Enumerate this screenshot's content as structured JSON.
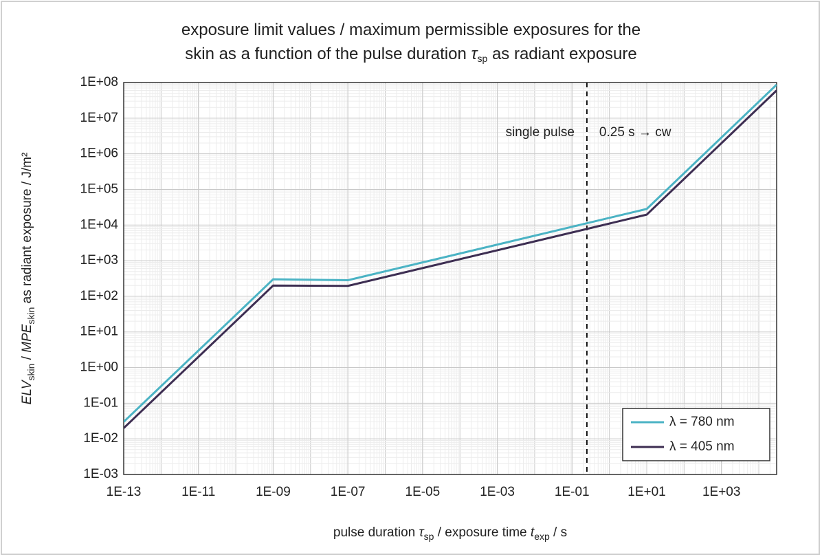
{
  "chart_data": {
    "type": "line",
    "title": [
      [
        "exposure limit values / maximum permissible exposures for the"
      ],
      [
        "skin as a function of the pulse duration ",
        "τ",
        "sp",
        " as radiant exposure"
      ]
    ],
    "xlabel": [
      "pulse duration ",
      "τ",
      "sp",
      " / exposure time ",
      "t",
      "exp",
      " / s"
    ],
    "ylabel": [
      "ELV",
      "skin",
      " / ",
      "MPE",
      "skin",
      " as radiant exposure / J/m²"
    ],
    "x": [
      1e-13,
      1e-09,
      1e-07,
      10,
      30000
    ],
    "series": [
      {
        "name": "λ = 780 nm",
        "color": "#4bb3c4",
        "values": [
          0.03,
          300,
          283,
          28300,
          87000000
        ]
      },
      {
        "name": "λ = 405 nm",
        "color": "#3d2e52",
        "values": [
          0.02,
          200,
          196,
          19600,
          60000000
        ]
      }
    ],
    "xlim": [
      1e-13,
      30000
    ],
    "ylim": [
      0.001,
      100000000
    ],
    "xscale": "log",
    "yscale": "log",
    "grid": true,
    "legend": "lower right",
    "xticks": [
      {
        "value": 1e-13,
        "label": "1E-13"
      },
      {
        "value": 1e-11,
        "label": "1E-11"
      },
      {
        "value": 1e-09,
        "label": "1E-09"
      },
      {
        "value": 1e-07,
        "label": "1E-07"
      },
      {
        "value": 1e-05,
        "label": "1E-05"
      },
      {
        "value": 0.001,
        "label": "1E-03"
      },
      {
        "value": 0.1,
        "label": "1E-01"
      },
      {
        "value": 10,
        "label": "1E+01"
      },
      {
        "value": 1000,
        "label": "1E+03"
      }
    ],
    "yticks": [
      {
        "value": 0.001,
        "label": "1E-03"
      },
      {
        "value": 0.01,
        "label": "1E-02"
      },
      {
        "value": 0.1,
        "label": "1E-01"
      },
      {
        "value": 1,
        "label": "1E+00"
      },
      {
        "value": 10,
        "label": "1E+01"
      },
      {
        "value": 100,
        "label": "1E+02"
      },
      {
        "value": 1000,
        "label": "1E+03"
      },
      {
        "value": 10000,
        "label": "1E+04"
      },
      {
        "value": 100000,
        "label": "1E+05"
      },
      {
        "value": 1000000,
        "label": "1E+06"
      },
      {
        "value": 10000000,
        "label": "1E+07"
      },
      {
        "value": 100000000,
        "label": "1E+08"
      }
    ],
    "vline": 0.25,
    "annotations": [
      "single pulse",
      "0.25 s → cw"
    ]
  }
}
